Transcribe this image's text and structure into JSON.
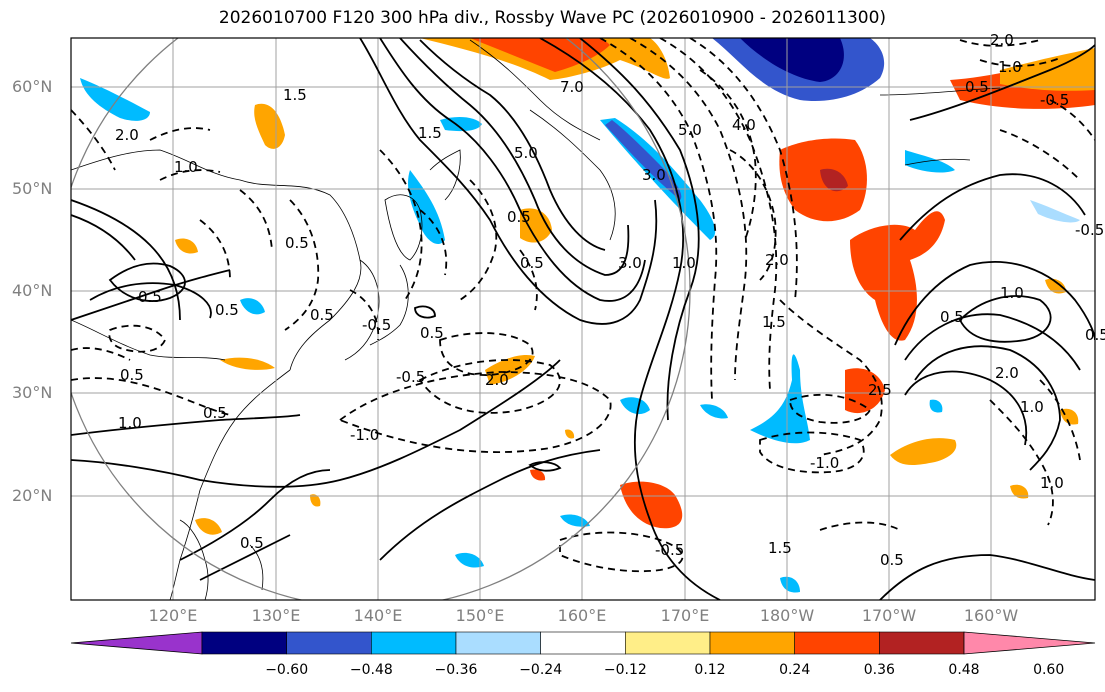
{
  "title": "2026010700 F120 300 hPa div., Rossby Wave PC (2026010900 - 2026011300)",
  "lat_labels": [
    "60°N",
    "50°N",
    "40°N",
    "30°N",
    "20°N"
  ],
  "lon_labels": [
    "120°E",
    "130°E",
    "140°E",
    "150°E",
    "160°E",
    "170°E",
    "180°W",
    "170°W",
    "160°W"
  ],
  "contour_labels": [
    "1.5",
    "2.0",
    "1.0",
    "0.5",
    "1.0",
    "0.5",
    "5.0",
    "3.0",
    "1.0",
    "2.0",
    "1.5",
    "0.5",
    "1.0",
    "-1.0",
    "0.5",
    "-0.5",
    "-0.5",
    "0.5",
    "1.0",
    "2.0",
    "0.5",
    "1.5",
    "1.0",
    "2.0",
    "0.5",
    "0.5",
    "-0.5",
    "0.5",
    "0.5",
    "3.0",
    "4.0",
    "5.0",
    "7.0",
    "1.5",
    "0.5",
    "-1.0",
    "0.5",
    "-0.5",
    "0.5",
    "1.0",
    "-0.5",
    "0.5",
    "2.0",
    "2.5"
  ],
  "colorbar": {
    "labels": [
      "−0.60",
      "−0.48",
      "−0.36",
      "−0.24",
      "−0.12",
      "0.12",
      "0.24",
      "0.36",
      "0.48",
      "0.60"
    ],
    "colors": [
      "#9933cc",
      "#000080",
      "#3355cc",
      "#00bbff",
      "#aaddff",
      "#ffffff",
      "#ffee88",
      "#ffa500",
      "#ff4400",
      "#b22222",
      "#ff88aa"
    ]
  },
  "colors": {
    "contour": "#000000",
    "grid": "#a0a0a0",
    "coast": "#000000",
    "circle": "#808080"
  }
}
